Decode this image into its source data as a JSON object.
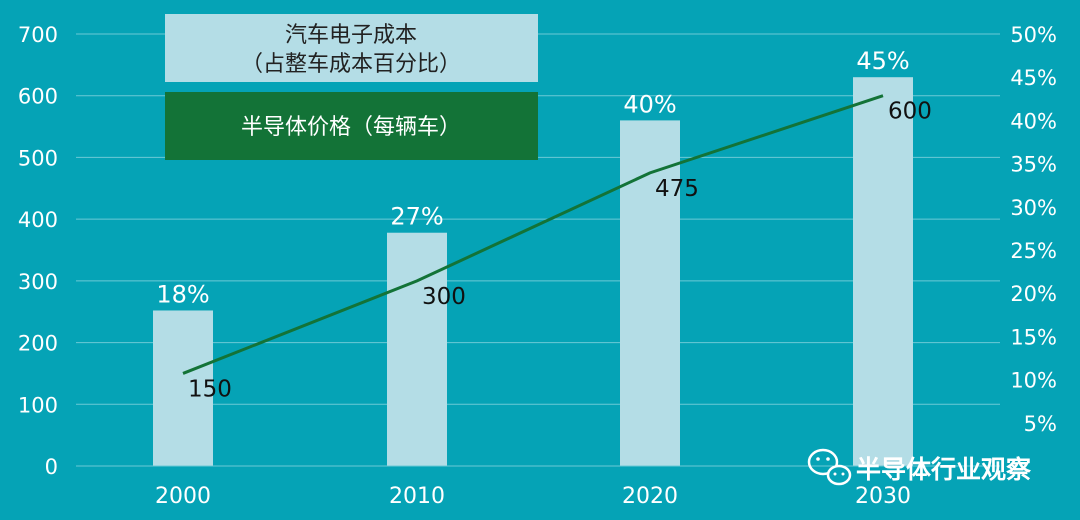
{
  "chart_data": {
    "type": "bar+line",
    "categories": [
      "2000",
      "2010",
      "2020",
      "2030"
    ],
    "bar_series": {
      "name": "汽车电子成本（占整车成本百分比）",
      "values": [
        18,
        27,
        40,
        45
      ],
      "labels": [
        "18%",
        "27%",
        "40%",
        "45%"
      ],
      "color": "#b4dde6"
    },
    "line_series": {
      "name": "半导体价格（每辆车）",
      "values": [
        150,
        300,
        475,
        600
      ],
      "labels": [
        "150",
        "300",
        "475",
        "600"
      ],
      "color": "#137337"
    },
    "y_left": {
      "lim": [
        0,
        700
      ],
      "ticks": [
        "0",
        "100",
        "200",
        "300",
        "400",
        "500",
        "600",
        "700"
      ]
    },
    "y_right": {
      "lim": [
        0,
        50
      ],
      "ticks": [
        "5%",
        "10%",
        "15%",
        "20%",
        "25%",
        "30%",
        "35%",
        "40%",
        "45%",
        "50%"
      ]
    },
    "grid": true,
    "legend": {
      "placement": "top-left",
      "items": [
        {
          "line1": "汽车电子成本",
          "line2": "（占整车成本百分比）",
          "color": "#b4dde6"
        },
        {
          "line1": "半导体价格（每辆车）",
          "color": "#137337"
        }
      ]
    }
  },
  "watermark": {
    "text": "半导体行业观察",
    "icon": "wechat-icon"
  },
  "colors": {
    "background": "#05a3b6",
    "grid": "#6cc9d6"
  }
}
